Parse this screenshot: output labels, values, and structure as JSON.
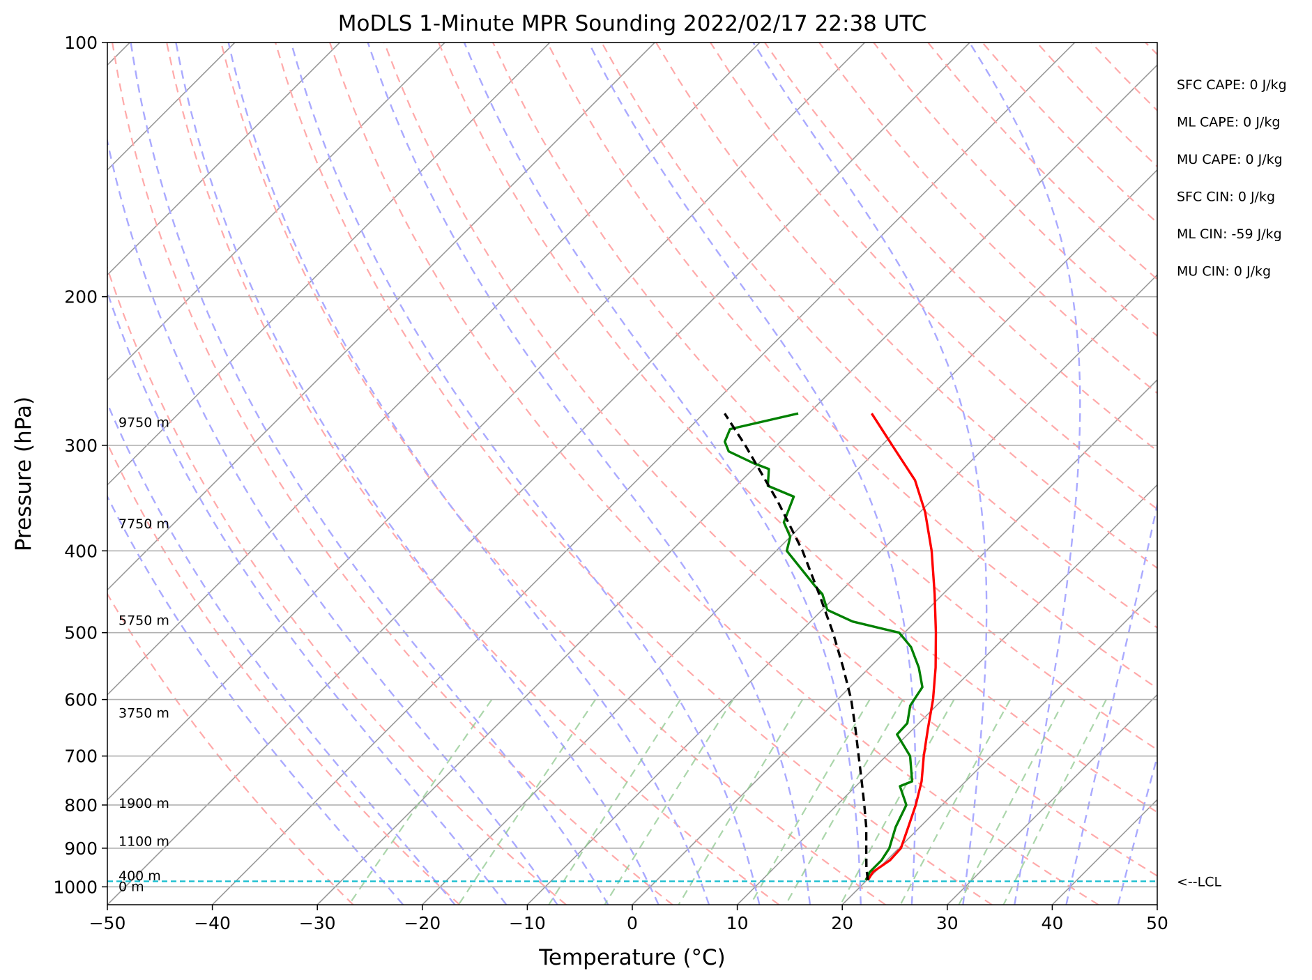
{
  "chart_data": {
    "type": "line",
    "title": "MoDLS 1-Minute MPR Sounding 2022/02/17 22:38 UTC",
    "xlabel": "Temperature (°C)",
    "ylabel": "Pressure (hPa)",
    "xlim": [
      -50,
      50
    ],
    "ylim": [
      1050,
      100
    ],
    "y_scale": "log",
    "skew": "skew-T",
    "x_ticks": [
      -50,
      -40,
      -30,
      -20,
      -10,
      0,
      10,
      20,
      30,
      40,
      50
    ],
    "x_tick_labels": [
      "−50",
      "−40",
      "−30",
      "−20",
      "−10",
      "0",
      "10",
      "20",
      "30",
      "40",
      "50"
    ],
    "y_ticks": [
      100,
      200,
      300,
      400,
      500,
      600,
      700,
      800,
      900,
      1000
    ],
    "y_tick_labels": [
      "100",
      "200",
      "300",
      "400",
      "500",
      "600",
      "700",
      "800",
      "900",
      "1000"
    ],
    "grid": true,
    "colors": {
      "temperature": "#ff0000",
      "dewpoint": "#008000",
      "parcel": "#000000",
      "lcl": "#17becf",
      "dry_adiabat": "#ffaaaa",
      "moist_adiabat": "#aaaaff",
      "mixing_ratio": "#8fc88f",
      "isotherm": "#999999"
    },
    "series": [
      {
        "key": "temperature",
        "points": [
          {
            "p": 982,
            "t": 20.1
          },
          {
            "p": 960,
            "t": 19.8
          },
          {
            "p": 930,
            "t": 20.3
          },
          {
            "p": 900,
            "t": 20.2
          },
          {
            "p": 850,
            "t": 18.9
          },
          {
            "p": 800,
            "t": 17.5
          },
          {
            "p": 750,
            "t": 15.8
          },
          {
            "p": 700,
            "t": 13.6
          },
          {
            "p": 650,
            "t": 11.4
          },
          {
            "p": 600,
            "t": 9.1
          },
          {
            "p": 550,
            "t": 6.3
          },
          {
            "p": 500,
            "t": 3.0
          },
          {
            "p": 450,
            "t": -0.8
          },
          {
            "p": 400,
            "t": -5.2
          },
          {
            "p": 360,
            "t": -9.5
          },
          {
            "p": 330,
            "t": -13.5
          },
          {
            "p": 300,
            "t": -19.0
          },
          {
            "p": 275,
            "t": -24.0
          }
        ]
      },
      {
        "key": "dewpoint",
        "points": [
          {
            "p": 982,
            "t": 19.9
          },
          {
            "p": 960,
            "t": 19.5
          },
          {
            "p": 930,
            "t": 19.5
          },
          {
            "p": 900,
            "t": 19.1
          },
          {
            "p": 850,
            "t": 17.7
          },
          {
            "p": 800,
            "t": 16.6
          },
          {
            "p": 760,
            "t": 14.2
          },
          {
            "p": 750,
            "t": 14.9
          },
          {
            "p": 700,
            "t": 12.3
          },
          {
            "p": 660,
            "t": 9.0
          },
          {
            "p": 640,
            "t": 8.9
          },
          {
            "p": 610,
            "t": 7.5
          },
          {
            "p": 580,
            "t": 6.9
          },
          {
            "p": 550,
            "t": 4.7
          },
          {
            "p": 520,
            "t": 2.0
          },
          {
            "p": 500,
            "t": -0.5
          },
          {
            "p": 485,
            "t": -6.0
          },
          {
            "p": 470,
            "t": -9.5
          },
          {
            "p": 450,
            "t": -11.5
          },
          {
            "p": 440,
            "t": -13.0
          },
          {
            "p": 400,
            "t": -19.0
          },
          {
            "p": 385,
            "t": -20.0
          },
          {
            "p": 370,
            "t": -22.0
          },
          {
            "p": 345,
            "t": -23.5
          },
          {
            "p": 335,
            "t": -27.0
          },
          {
            "p": 320,
            "t": -28.5
          },
          {
            "p": 315,
            "t": -30.5
          },
          {
            "p": 305,
            "t": -34.0
          },
          {
            "p": 297,
            "t": -35.3
          },
          {
            "p": 287,
            "t": -36.0
          },
          {
            "p": 275,
            "t": -31.0
          }
        ]
      },
      {
        "key": "parcel",
        "points": [
          {
            "p": 982,
            "t": 20.1
          },
          {
            "p": 950,
            "t": 18.8
          },
          {
            "p": 900,
            "t": 16.9
          },
          {
            "p": 850,
            "t": 14.9
          },
          {
            "p": 800,
            "t": 12.6
          },
          {
            "p": 750,
            "t": 10.1
          },
          {
            "p": 700,
            "t": 7.4
          },
          {
            "p": 650,
            "t": 4.5
          },
          {
            "p": 600,
            "t": 1.3
          },
          {
            "p": 550,
            "t": -2.5
          },
          {
            "p": 500,
            "t": -6.8
          },
          {
            "p": 450,
            "t": -11.8
          },
          {
            "p": 400,
            "t": -17.5
          },
          {
            "p": 350,
            "t": -24.5
          },
          {
            "p": 300,
            "t": -33.0
          },
          {
            "p": 275,
            "t": -38.0
          }
        ]
      }
    ],
    "lcl": {
      "p": 985,
      "label": "<--LCL"
    },
    "height_labels": [
      {
        "p": 282,
        "label": "9750 m"
      },
      {
        "p": 372,
        "label": "7750 m"
      },
      {
        "p": 484,
        "label": "5750 m"
      },
      {
        "p": 623,
        "label": "3750 m"
      },
      {
        "p": 797,
        "label": "1900 m"
      },
      {
        "p": 884,
        "label": "1100 m"
      },
      {
        "p": 971,
        "label": "400 m"
      },
      {
        "p": 1000,
        "label": "0 m"
      }
    ],
    "stats": [
      "SFC CAPE: 0 J/kg",
      "ML CAPE: 0 J/kg",
      "MU CAPE: 0 J/kg",
      "SFC CIN: 0 J/kg",
      "ML CIN: -59 J/kg",
      "MU CIN: 0 J/kg"
    ]
  }
}
